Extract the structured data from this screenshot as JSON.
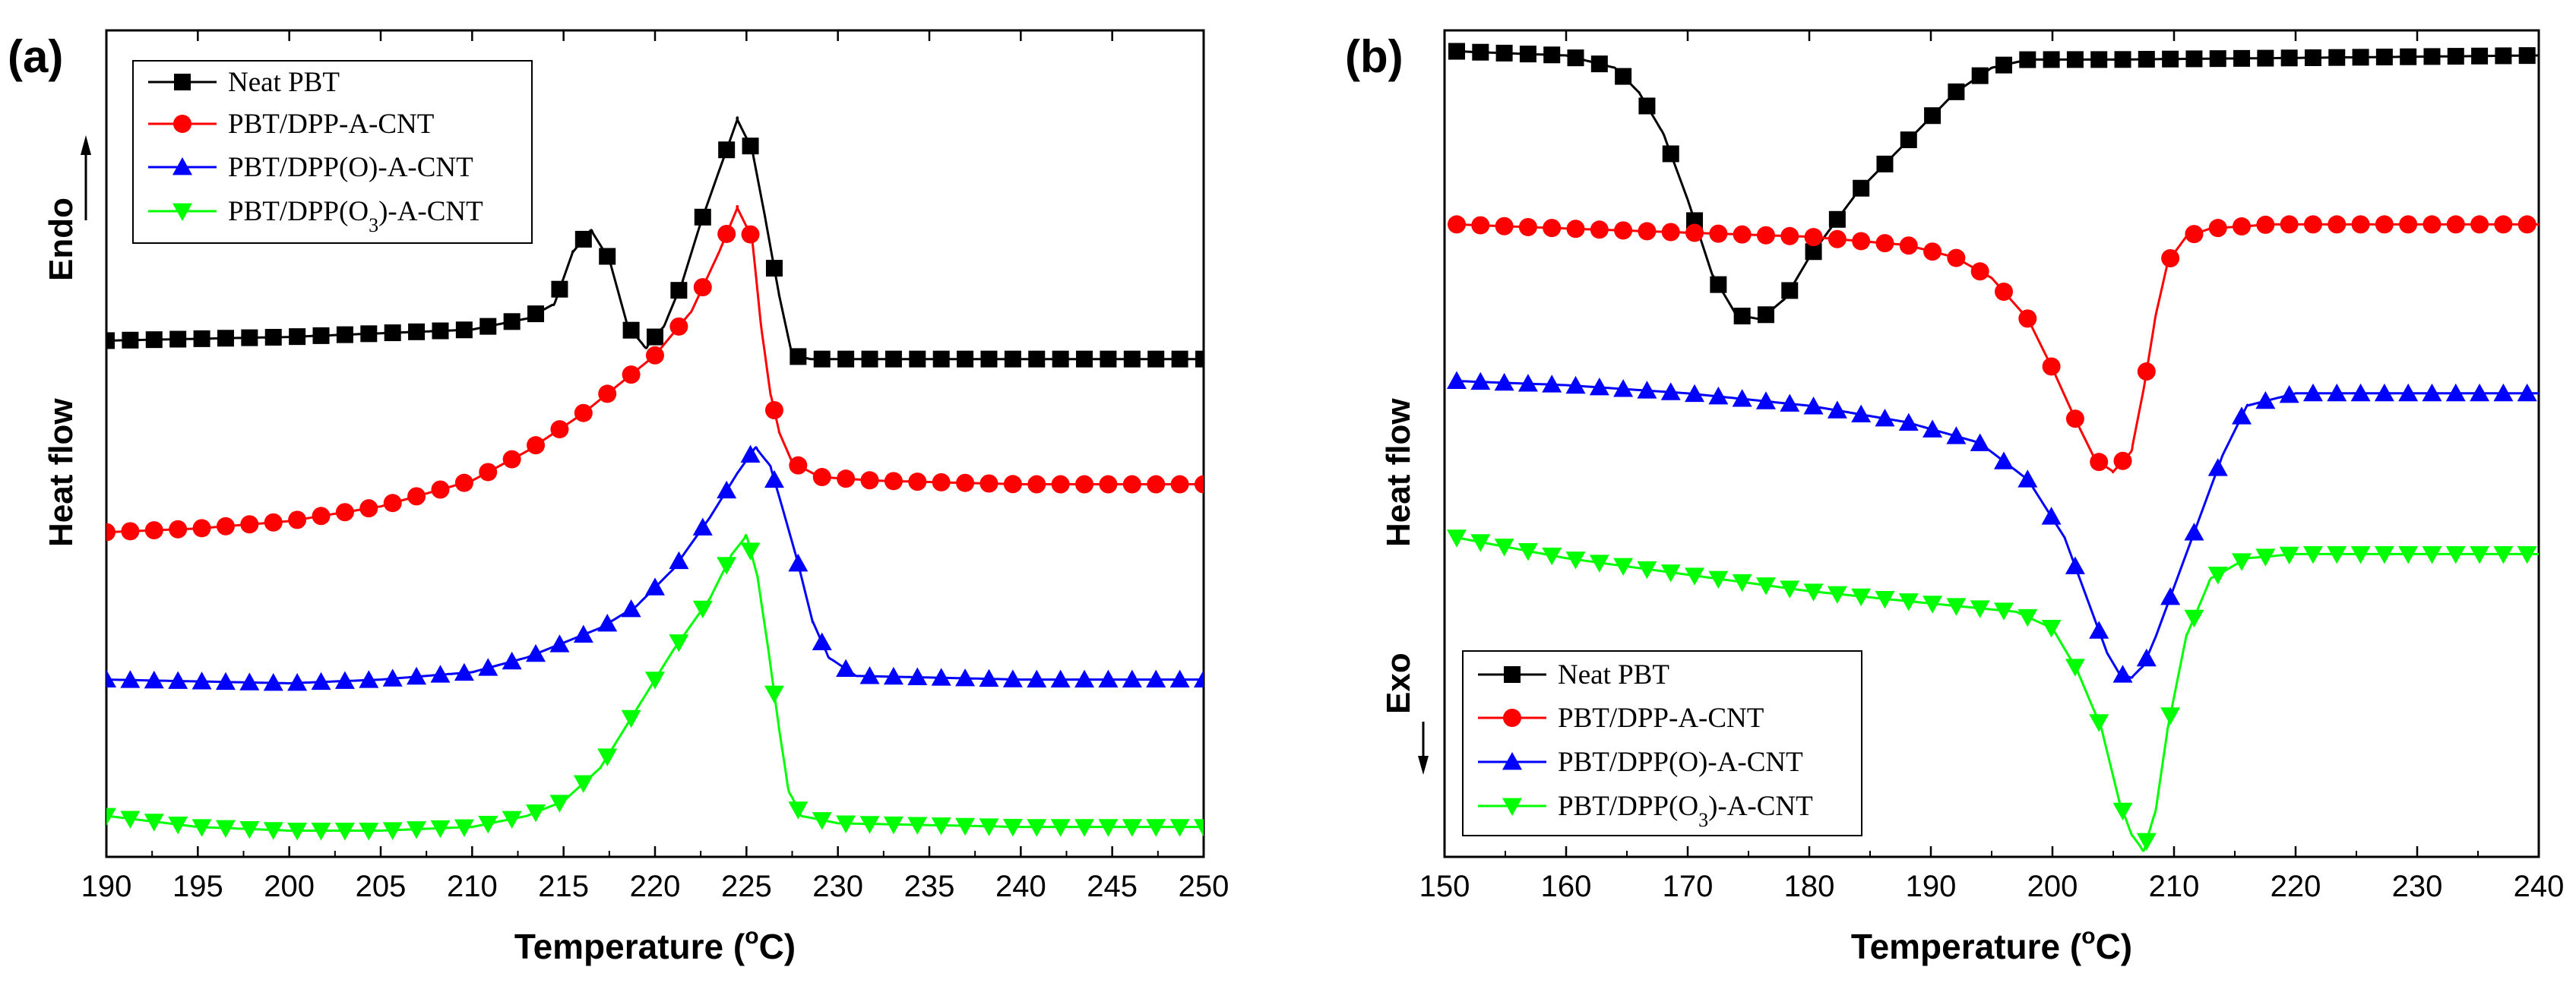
{
  "chart_data": [
    {
      "type": "line",
      "panel_label": "(a)",
      "xlabel_main": "Temperature (",
      "xlabel_deg": "o",
      "xlabel_unit": "C)",
      "ylabel": "Heat flow",
      "direction_label": "Endo",
      "direction": "up",
      "xlim": [
        190,
        250
      ],
      "xticks": [
        190,
        195,
        200,
        205,
        210,
        215,
        220,
        225,
        230,
        235,
        240,
        245,
        250
      ],
      "ylim": [
        0,
        100
      ],
      "legend_position": "top-left",
      "series": [
        {
          "name": "Neat PBT",
          "color": "#000000",
          "marker": "square",
          "x": [
            190,
            200,
            210,
            213,
            214.5,
            215.5,
            216.5,
            217.5,
            218.5,
            219.5,
            220.5,
            221.5,
            222.5,
            223.5,
            224.5,
            225.3,
            226,
            226.8,
            227.5,
            228.5,
            235,
            250
          ],
          "y": [
            68,
            68.5,
            69.5,
            71,
            73,
            80,
            83,
            79,
            70,
            67,
            70,
            76,
            84,
            91,
            98,
            94,
            85,
            74,
            66,
            65.5,
            65.5,
            65.5
          ]
        },
        {
          "name": "PBT/DPP-A-CNT",
          "color": "#ff0000",
          "marker": "circle",
          "x": [
            190,
            195,
            200,
            205,
            210,
            213,
            216,
            218,
            220,
            222,
            223.5,
            224.5,
            225.3,
            225.8,
            226.3,
            226.8,
            227.5,
            229,
            232,
            240,
            250
          ],
          "y": [
            42,
            42.5,
            43.5,
            45.5,
            49,
            53,
            58,
            62,
            66,
            72,
            80,
            86,
            82,
            70,
            61,
            55.5,
            51.5,
            49.5,
            49,
            48.5,
            48.5
          ]
        },
        {
          "name": "PBT/DPP(O)-A-CNT",
          "color": "#0000ff",
          "marker": "triangle-up",
          "x": [
            190,
            200,
            205,
            210,
            213,
            215,
            217,
            219,
            221,
            223,
            224.5,
            225.5,
            226.3,
            227,
            227.8,
            228.6,
            229.5,
            231,
            240,
            250
          ],
          "y": [
            22,
            21.5,
            22,
            23,
            25,
            27,
            29,
            32,
            37,
            44,
            50,
            53.5,
            51,
            45,
            38,
            30,
            25,
            22.5,
            22,
            22
          ]
        },
        {
          "name": "PBT/DPP(O3)-A-CNT",
          "color": "#00ff00",
          "marker": "triangle-down",
          "x": [
            190,
            195,
            200,
            205,
            210,
            213,
            215,
            217,
            219,
            221,
            223,
            224.2,
            225,
            225.6,
            226.2,
            226.8,
            227.3,
            228,
            230,
            240,
            250
          ],
          "y": [
            3.5,
            2,
            1.5,
            1.5,
            2,
            3.5,
            5.5,
            10,
            18,
            26,
            33,
            39,
            41.5,
            36,
            26,
            15,
            7,
            3.5,
            2.5,
            2,
            2
          ]
        }
      ]
    },
    {
      "type": "line",
      "panel_label": "(b)",
      "xlabel_main": "Temperature (",
      "xlabel_deg": "o",
      "xlabel_unit": "C)",
      "ylabel": "Heat flow",
      "direction_label": "Exo",
      "direction": "down",
      "xlim": [
        150,
        240
      ],
      "xticks": [
        150,
        160,
        170,
        180,
        190,
        200,
        210,
        220,
        230,
        240
      ],
      "ylim": [
        0,
        100
      ],
      "legend_position": "bottom-left",
      "series": [
        {
          "name": "Neat PBT",
          "color": "#000000",
          "marker": "square",
          "x": [
            151,
            160,
            164,
            166,
            168,
            170,
            172,
            174,
            176,
            178,
            180,
            184,
            188,
            192,
            195,
            198,
            205,
            220,
            240
          ],
          "y": [
            97,
            96.5,
            95,
            92,
            87,
            79,
            70,
            65,
            64.5,
            67,
            72,
            80,
            86,
            92,
            95,
            96,
            96,
            96.2,
            96.5
          ]
        },
        {
          "name": "PBT/DPP-A-CNT",
          "color": "#ff0000",
          "marker": "circle",
          "x": [
            151,
            160,
            170,
            180,
            188,
            192,
            195,
            198,
            200,
            202,
            203.5,
            205,
            206.5,
            207.5,
            208.5,
            209.5,
            211,
            213,
            218,
            240
          ],
          "y": [
            76,
            75.5,
            75,
            74.5,
            73.5,
            72,
            69.5,
            64.5,
            58.5,
            52,
            47.5,
            46,
            48.5,
            56,
            65,
            71.5,
            74.5,
            75.5,
            76,
            76
          ]
        },
        {
          "name": "PBT/DPP(O)-A-CNT",
          "color": "#0000ff",
          "marker": "triangle-up",
          "x": [
            151,
            160,
            170,
            180,
            188,
            194,
            198,
            201,
            203,
            204.5,
            205.5,
            206.5,
            207.5,
            208.5,
            210,
            212,
            214,
            216,
            220,
            240
          ],
          "y": [
            57,
            56.5,
            55.5,
            54,
            52,
            49.5,
            45,
            38,
            30,
            24,
            21.5,
            21,
            22.5,
            26,
            32,
            40,
            48,
            54,
            55.5,
            55.5
          ]
        },
        {
          "name": "PBT/DPP(O3)-A-CNT",
          "color": "#00ff00",
          "marker": "triangle-down",
          "x": [
            151,
            160,
            170,
            180,
            190,
            197,
            200,
            202,
            204,
            205.5,
            206.5,
            207.5,
            208.5,
            209.5,
            211,
            213,
            216,
            220,
            240
          ],
          "y": [
            38,
            35.5,
            33.5,
            31.5,
            30,
            29,
            27,
            22,
            15,
            6,
            2,
            0,
            5,
            15,
            26,
            33,
            35.5,
            36,
            36
          ]
        }
      ]
    }
  ]
}
